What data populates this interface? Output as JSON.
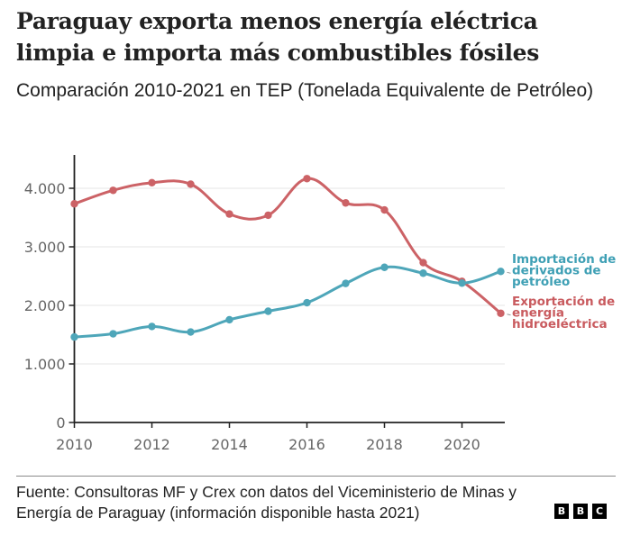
{
  "header": {
    "title": "Paraguay exporta menos energía eléctrica limpia e importa más combustibles fósiles",
    "subtitle": "Comparación 2010-2021 en TEP (Tonelada Equivalente de Petróleo)"
  },
  "footer": {
    "source": "Fuente: Consultoras MF y Crex con datos del Viceministerio de Minas y Energía de Paraguay (información disponible hasta 2021)",
    "logo_letters": [
      "B",
      "B",
      "C"
    ]
  },
  "colors": {
    "import": "#4ea6b9",
    "export": "#cc6266",
    "import_label": "#3fa0b5",
    "export_label": "#c95b5f",
    "axis": "#222222",
    "grid": "#e6e6e6"
  },
  "chart_data": {
    "type": "line",
    "title": "Paraguay exporta menos energía eléctrica limpia e importa más combustibles fósiles",
    "subtitle": "Comparación 2010-2021 en TEP (Tonelada Equivalente de Petróleo)",
    "xlabel": "",
    "ylabel": "",
    "x": [
      2010,
      2011,
      2012,
      2013,
      2014,
      2015,
      2016,
      2017,
      2018,
      2019,
      2020,
      2021
    ],
    "xlim": [
      2010,
      2021
    ],
    "ylim": [
      0,
      4500
    ],
    "x_ticks": [
      2010,
      2012,
      2014,
      2016,
      2018,
      2020
    ],
    "x_tick_labels": [
      "2010",
      "2012",
      "2014",
      "2016",
      "2018",
      "2020"
    ],
    "y_ticks": [
      0,
      1000,
      2000,
      3000,
      4000
    ],
    "y_tick_labels": [
      "0",
      "1.000",
      "2.000",
      "3.000",
      "4.000"
    ],
    "grid": true,
    "legend": "direct-labels-right",
    "series": [
      {
        "name": "Importación de derivados de petróleo",
        "label_lines": [
          "Importación de",
          "derivados de",
          "petróleo"
        ],
        "color": "#4ea6b9",
        "values": [
          1460,
          1515,
          1640,
          1545,
          1755,
          1900,
          2045,
          2375,
          2650,
          2550,
          2380,
          2580
        ]
      },
      {
        "name": "Exportación de energía hidroeléctrica",
        "label_lines": [
          "Exportación de",
          "energía",
          "hidroeléctrica"
        ],
        "color": "#cc6266",
        "values": [
          3735,
          3965,
          4095,
          4070,
          3560,
          3540,
          4165,
          3750,
          3630,
          2730,
          2410,
          1865
        ]
      }
    ]
  }
}
